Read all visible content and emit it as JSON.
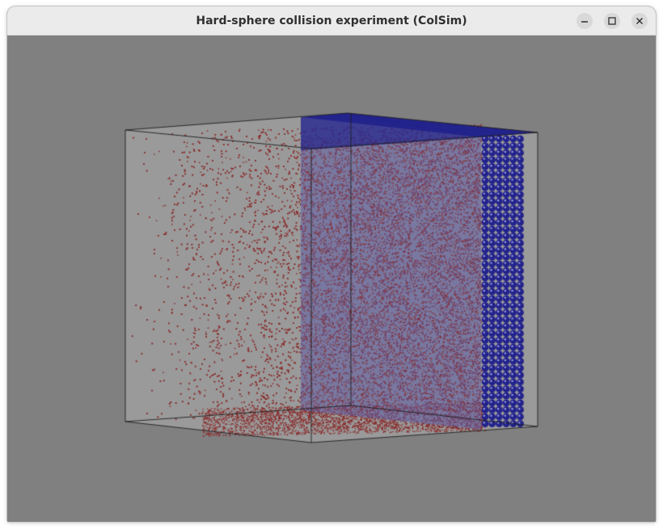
{
  "window": {
    "title": "Hard-sphere collision experiment (ColSim)"
  },
  "titlebar_buttons": [
    {
      "name": "minimize",
      "icon": "minimize-icon"
    },
    {
      "name": "maximize",
      "icon": "maximize-icon"
    },
    {
      "name": "close",
      "icon": "close-icon"
    }
  ],
  "scene": {
    "background_color": "#808080",
    "box_face_color": "#9a9a9a",
    "box_edge_color": "#1e1e1e",
    "particle_color": "#8b2f2f",
    "wall_panel_color": "#5c5ca6",
    "sphere_color": "#23238c",
    "sphere_highlight_color": "#9c9ce0"
  }
}
